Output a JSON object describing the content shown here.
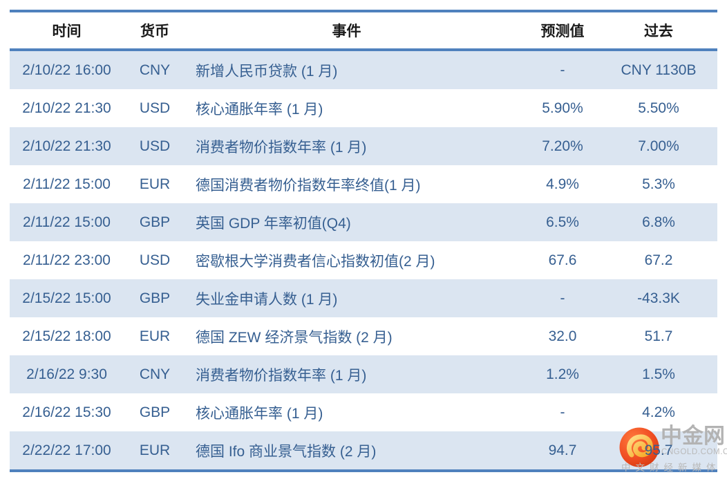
{
  "table": {
    "columns": [
      {
        "key": "time",
        "label": "时间"
      },
      {
        "key": "currency",
        "label": "货币"
      },
      {
        "key": "event",
        "label": "事件"
      },
      {
        "key": "forecast",
        "label": "预测值"
      },
      {
        "key": "previous",
        "label": "过去"
      }
    ],
    "rows": [
      {
        "time": "2/10/22 16:00",
        "currency": "CNY",
        "event": "新增人民币贷款 (1 月)",
        "forecast": "-",
        "previous": "CNY 1130B"
      },
      {
        "time": "2/10/22 21:30",
        "currency": "USD",
        "event": "核心通胀年率 (1 月)",
        "forecast": "5.90%",
        "previous": "5.50%"
      },
      {
        "time": "2/10/22 21:30",
        "currency": "USD",
        "event": "消费者物价指数年率 (1 月)",
        "forecast": "7.20%",
        "previous": "7.00%"
      },
      {
        "time": "2/11/22 15:00",
        "currency": "EUR",
        "event": "德国消费者物价指数年率终值(1 月)",
        "forecast": "4.9%",
        "previous": "5.3%"
      },
      {
        "time": "2/11/22 15:00",
        "currency": "GBP",
        "event": "英国 GDP 年率初值(Q4)",
        "forecast": "6.5%",
        "previous": "6.8%"
      },
      {
        "time": "2/11/22 23:00",
        "currency": "USD",
        "event": "密歇根大学消费者信心指数初值(2 月)",
        "forecast": "67.6",
        "previous": "67.2"
      },
      {
        "time": "2/15/22 15:00",
        "currency": "GBP",
        "event": "失业金申请人数 (1 月)",
        "forecast": "-",
        "previous": "-43.3K"
      },
      {
        "time": "2/15/22 18:00",
        "currency": "EUR",
        "event": "德国 ZEW 经济景气指数 (2 月)",
        "forecast": "32.0",
        "previous": "51.7"
      },
      {
        "time": "2/16/22 9:30",
        "currency": "CNY",
        "event": "消费者物价指数年率 (1 月)",
        "forecast": "1.2%",
        "previous": "1.5%"
      },
      {
        "time": "2/16/22 15:30",
        "currency": "GBP",
        "event": "核心通胀年率 (1 月)",
        "forecast": "-",
        "previous": "4.2%"
      },
      {
        "time": "2/22/22 17:00",
        "currency": "EUR",
        "event": "德国 Ifo 商业景气指数 (2 月)",
        "forecast": "94.7",
        "previous": "95.7"
      }
    ]
  },
  "watermark": {
    "brand": "中金网",
    "domain": "CNGOLD.COM.CN",
    "slogan": "中文财经新媒体"
  },
  "colors": {
    "border_blue": "#4f81bd",
    "row_alt_bg": "#dbe5f1",
    "data_text": "#365f91",
    "header_text": "#1a1a1a",
    "logo_red": "#f04e23",
    "logo_gold": "#f5a623",
    "watermark_gray": "#b3b3b3"
  }
}
